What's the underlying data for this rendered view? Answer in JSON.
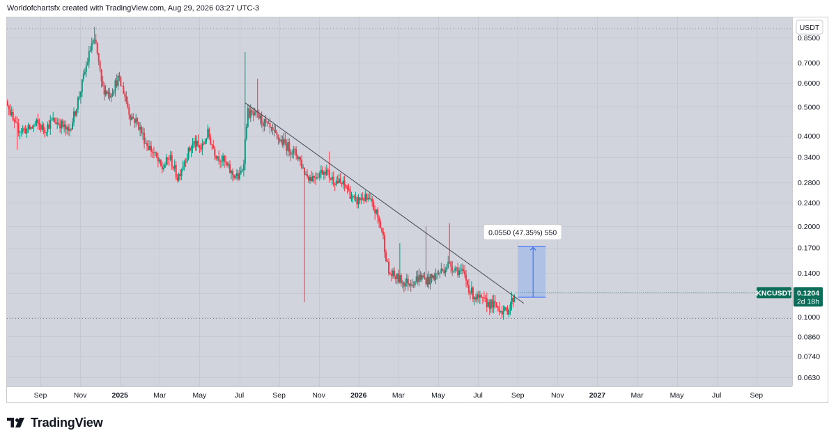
{
  "header": {
    "text": "Worldofchartsfx created with TradingView.com, Aug 29, 2026 03:27 UTC-3"
  },
  "footer": {
    "brand": "TradingView"
  },
  "chart_data": {
    "type": "candlestick",
    "currency_label": "USDT",
    "yscale": "log",
    "ylim": [
      0.06,
      0.96
    ],
    "yticks": [
      0.85,
      0.7,
      0.6,
      0.5,
      0.4,
      0.34,
      0.28,
      0.24,
      0.2,
      0.17,
      0.14,
      0.12,
      0.1,
      0.086,
      0.074,
      0.063
    ],
    "ytick_labels": [
      "0.8500",
      "0.7000",
      "0.6000",
      "0.5000",
      "0.4000",
      "0.3400",
      "0.2800",
      "0.2400",
      "0.2000",
      "0.1700",
      "0.1400",
      "0.1200",
      "0.1000",
      "0.0860",
      "0.0740",
      "0.0630"
    ],
    "hidden_ytick": "0.1200",
    "xticks": [
      {
        "label": "Sep",
        "month": 2,
        "bold": false
      },
      {
        "label": "Nov",
        "month": 4,
        "bold": false
      },
      {
        "label": "2025",
        "month": 6,
        "bold": true
      },
      {
        "label": "Mar",
        "month": 8,
        "bold": false
      },
      {
        "label": "May",
        "month": 10,
        "bold": false
      },
      {
        "label": "Jul",
        "month": 12,
        "bold": false
      },
      {
        "label": "Sep",
        "month": 14,
        "bold": false
      },
      {
        "label": "Nov",
        "month": 16,
        "bold": false
      },
      {
        "label": "2026",
        "month": 18,
        "bold": true
      },
      {
        "label": "Mar",
        "month": 20,
        "bold": false
      },
      {
        "label": "May",
        "month": 22,
        "bold": false
      },
      {
        "label": "Jul",
        "month": 24,
        "bold": false
      },
      {
        "label": "Sep",
        "month": 26,
        "bold": false
      },
      {
        "label": "Nov",
        "month": 28,
        "bold": false
      },
      {
        "label": "2027",
        "month": 30,
        "bold": true
      },
      {
        "label": "Mar",
        "month": 32,
        "bold": false
      },
      {
        "label": "May",
        "month": 34,
        "bold": false
      },
      {
        "label": "Jul",
        "month": 36,
        "bold": false
      },
      {
        "label": "Sep",
        "month": 38,
        "bold": false
      }
    ],
    "anchors": [
      [
        0.0,
        0.55
      ],
      [
        0.3,
        0.53
      ],
      [
        0.7,
        0.43
      ],
      [
        1.0,
        0.42
      ],
      [
        1.4,
        0.42
      ],
      [
        1.8,
        0.44
      ],
      [
        2.2,
        0.42
      ],
      [
        2.6,
        0.45
      ],
      [
        3.0,
        0.44
      ],
      [
        3.4,
        0.41
      ],
      [
        3.7,
        0.47
      ],
      [
        4.0,
        0.56
      ],
      [
        4.3,
        0.68
      ],
      [
        4.6,
        0.82
      ],
      [
        4.8,
        0.8
      ],
      [
        5.1,
        0.58
      ],
      [
        5.5,
        0.55
      ],
      [
        5.9,
        0.62
      ],
      [
        6.2,
        0.56
      ],
      [
        6.5,
        0.47
      ],
      [
        6.9,
        0.44
      ],
      [
        7.3,
        0.38
      ],
      [
        7.7,
        0.35
      ],
      [
        8.1,
        0.31
      ],
      [
        8.5,
        0.34
      ],
      [
        8.9,
        0.29
      ],
      [
        9.3,
        0.34
      ],
      [
        9.7,
        0.38
      ],
      [
        10.1,
        0.36
      ],
      [
        10.4,
        0.41
      ],
      [
        10.8,
        0.35
      ],
      [
        11.2,
        0.33
      ],
      [
        11.6,
        0.3
      ],
      [
        12.0,
        0.29
      ],
      [
        12.2,
        0.32
      ],
      [
        12.4,
        0.48
      ],
      [
        12.6,
        0.47
      ],
      [
        13.0,
        0.46
      ],
      [
        13.4,
        0.43
      ],
      [
        13.8,
        0.4
      ],
      [
        14.2,
        0.38
      ],
      [
        14.6,
        0.36
      ],
      [
        15.0,
        0.34
      ],
      [
        15.3,
        0.3
      ],
      [
        15.6,
        0.29
      ],
      [
        16.0,
        0.3
      ],
      [
        16.3,
        0.31
      ],
      [
        16.6,
        0.29
      ],
      [
        17.0,
        0.28
      ],
      [
        17.4,
        0.27
      ],
      [
        17.8,
        0.24
      ],
      [
        18.2,
        0.25
      ],
      [
        18.6,
        0.24
      ],
      [
        18.9,
        0.22
      ],
      [
        19.2,
        0.19
      ],
      [
        19.5,
        0.14
      ],
      [
        19.9,
        0.135
      ],
      [
        20.3,
        0.13
      ],
      [
        20.7,
        0.131
      ],
      [
        21.1,
        0.136
      ],
      [
        21.5,
        0.132
      ],
      [
        21.9,
        0.138
      ],
      [
        22.2,
        0.143
      ],
      [
        22.5,
        0.15
      ],
      [
        22.9,
        0.145
      ],
      [
        23.3,
        0.138
      ],
      [
        23.6,
        0.122
      ],
      [
        23.9,
        0.116
      ],
      [
        24.3,
        0.112
      ],
      [
        24.7,
        0.11
      ],
      [
        25.1,
        0.107
      ],
      [
        25.4,
        0.103
      ],
      [
        25.7,
        0.113
      ],
      [
        25.9,
        0.12
      ]
    ],
    "spikes": [
      {
        "m": 4.75,
        "value": 0.92,
        "kind": "high"
      },
      {
        "m": 12.3,
        "value": 0.76,
        "kind": "high"
      },
      {
        "m": 12.9,
        "value": 0.62,
        "kind": "high"
      },
      {
        "m": 15.3,
        "value": 0.112,
        "kind": "low"
      },
      {
        "m": 16.5,
        "value": 0.355,
        "kind": "high"
      },
      {
        "m": 21.4,
        "value": 0.2,
        "kind": "high"
      },
      {
        "m": 22.6,
        "value": 0.205,
        "kind": "high"
      },
      {
        "m": 20.1,
        "value": 0.176,
        "kind": "high"
      },
      {
        "m": 0.8,
        "value": 0.36,
        "kind": "low"
      }
    ],
    "trendline": {
      "start": {
        "month": 12.3,
        "value": 0.515
      },
      "end": {
        "month": 26.3,
        "value": 0.111
      }
    },
    "dotted_high": 0.91,
    "dotted_low": 0.099,
    "measure": {
      "from_month": 26.0,
      "to_month": 27.4,
      "low": 0.1162,
      "high": 0.1712,
      "label": "0.0550 (47.35%) 550"
    },
    "last_price": {
      "symbol": "KNCUSDT",
      "value": "0.1204",
      "countdown": "2d 18h",
      "numeric": 0.1204
    },
    "colors": {
      "up": "#089981",
      "down": "#f23645",
      "plot_bg": "#d1d4dc",
      "grid": "#c6c9d0",
      "trend": "#434651",
      "measure_fill": "#a9bee8",
      "measure_line": "#2962ff",
      "last_price": "#0c6e58"
    }
  }
}
